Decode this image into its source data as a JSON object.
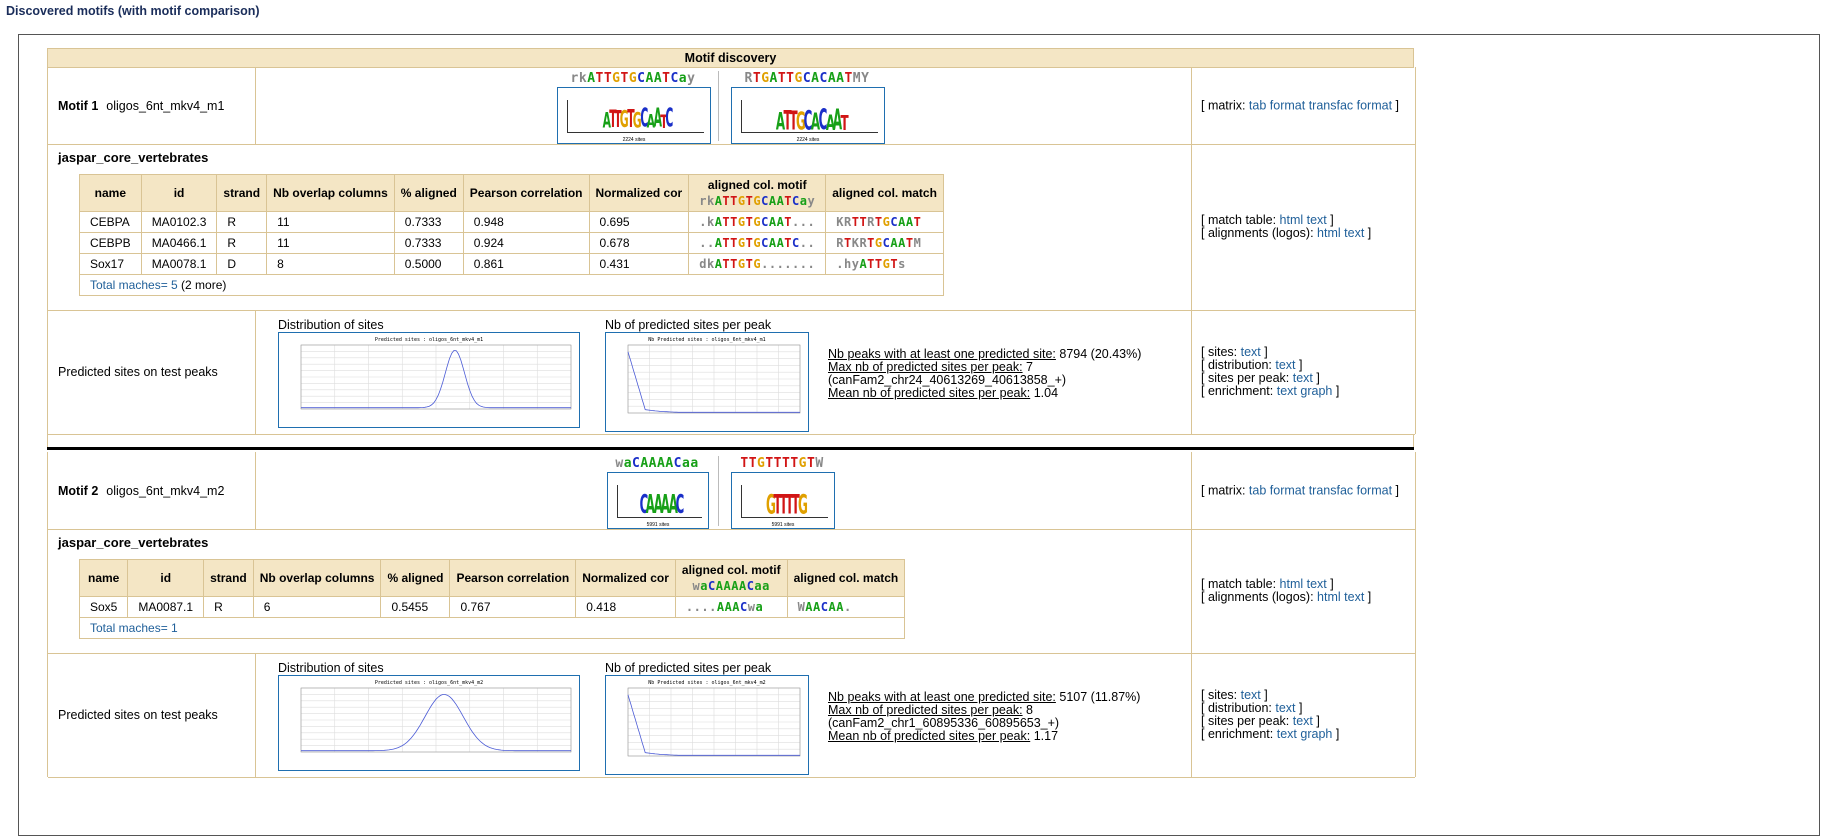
{
  "page_title": "Discovered motifs (with motif comparison)",
  "table_title": "Motif discovery",
  "motifs": [
    {
      "num": "Motif 1",
      "name": "oligos_6nt_mkv4_m1",
      "logo_fwd": {
        "consensus": "rkATTGTGCAATCay",
        "letters": "ATTGTGCAATC",
        "sites": "2224 sites"
      },
      "logo_rc": {
        "consensus": "RTGATTGCACAATMY",
        "letters": "ATTGCACAAT",
        "sites": "2224 sites"
      },
      "matrix_links": {
        "prefix": "[ matrix:",
        "tab": "tab format",
        "transfac": "transfac format",
        "suffix": "]"
      },
      "db": "jaspar_core_vertebrates",
      "motif_consensus": "rkATTGTGCAATCay",
      "matches": [
        {
          "name": "CEBPA",
          "id": "MA0102.3",
          "strand": "R",
          "overlap": "11",
          "aligned": "0.7333",
          "pearson": "0.948",
          "ncor": "0.695",
          "amotif": ".kATTGTGCAAT...",
          "amatch": "KRTTRTGCAAT"
        },
        {
          "name": "CEBPB",
          "id": "MA0466.1",
          "strand": "R",
          "overlap": "11",
          "aligned": "0.7333",
          "pearson": "0.924",
          "ncor": "0.678",
          "amotif": "..ATTGTGCAATC..",
          "amatch": "RTKRTGCAATM"
        },
        {
          "name": "Sox17",
          "id": "MA0078.1",
          "strand": "D",
          "overlap": "8",
          "aligned": "0.5000",
          "pearson": "0.861",
          "ncor": "0.431",
          "amotif": "dkATTGTG.......",
          "amatch": ".hyATTGTs"
        }
      ],
      "total_label": "Total maches= 5",
      "total_extra": " (2 more)",
      "match_links": {
        "table_prefix": "[ match table:",
        "html": "html",
        "text": "text",
        "align_prefix": "[ alignments (logos):",
        "html2": "html",
        "text2": "text",
        "suffix": "]"
      },
      "sites_label": "Predicted sites on test peaks",
      "dist_title": "Distribution of sites",
      "dist_plot_title": "Predicted sites : oligos_6nt_mkv4_m1",
      "peak_title": "Nb of predicted sites per peak",
      "peak_plot_title": "Nb Predicted sites : oligos_6nt_mkv4_m1",
      "stats": {
        "peaks_key": "Nb peaks with at least one predicted site:",
        "peaks_val": " 8794 (20.43%)",
        "max_key": "Max nb of predicted sites per peak:",
        "max_val": " 7",
        "max_loc": " (canFam2_chr24_40613269_40613858_+)",
        "mean_key": "Mean nb of predicted sites per peak:",
        "mean_val": " 1.04"
      },
      "sites_links": {
        "sites": "[ sites:",
        "sites_t": "text",
        "dist": "[ distribution:",
        "dist_t": "text",
        "spp": "[ sites per peak:",
        "spp_t": "text",
        "enr": "[ enrichment:",
        "enr_t": "text",
        "enr_g": "graph",
        "close": "]"
      }
    },
    {
      "num": "Motif 2",
      "name": "oligos_6nt_mkv4_m2",
      "logo_fwd": {
        "consensus": "waCAAAACaa",
        "letters": "CAAAAC",
        "sites": "5991 sites"
      },
      "logo_rc": {
        "consensus": "TTGTTTTGTW",
        "letters": "GTTTTG",
        "sites": "5991 sites"
      },
      "matrix_links": {
        "prefix": "[ matrix:",
        "tab": "tab format",
        "transfac": "transfac format",
        "suffix": "]"
      },
      "db": "jaspar_core_vertebrates",
      "motif_consensus": "waCAAAACaa",
      "matches": [
        {
          "name": "Sox5",
          "id": "MA0087.1",
          "strand": "R",
          "overlap": "6",
          "aligned": "0.5455",
          "pearson": "0.767",
          "ncor": "0.418",
          "amotif": "....AAACwa",
          "amatch": "WAACAA."
        }
      ],
      "total_label": "Total maches= 1",
      "total_extra": "",
      "match_links": {
        "table_prefix": "[ match table:",
        "html": "html",
        "text": "text",
        "align_prefix": "[ alignments (logos):",
        "html2": "html",
        "text2": "text",
        "suffix": "]"
      },
      "sites_label": "Predicted sites on test peaks",
      "dist_title": "Distribution of sites",
      "dist_plot_title": "Predicted sites : oligos_6nt_mkv4_m2",
      "peak_title": "Nb of predicted sites per peak",
      "peak_plot_title": "Nb Predicted sites : oligos_6nt_mkv4_m2",
      "stats": {
        "peaks_key": "Nb peaks with at least one predicted site:",
        "peaks_val": " 5107 (11.87%)",
        "max_key": "Max nb of predicted sites per peak:",
        "max_val": " 8",
        "max_loc": " (canFam2_chr1_60895336_60895653_+)",
        "mean_key": "Mean nb of predicted sites per peak:",
        "mean_val": " 1.17"
      },
      "sites_links": {
        "sites": "[ sites:",
        "sites_t": "text",
        "dist": "[ distribution:",
        "dist_t": "text",
        "spp": "[ sites per peak:",
        "spp_t": "text",
        "enr": "[ enrichment:",
        "enr_t": "text",
        "enr_g": "graph",
        "close": "]"
      }
    }
  ],
  "table_headers": {
    "name": "name",
    "id": "id",
    "strand": "strand",
    "overlap": "Nb overlap columns",
    "aligned": "% aligned",
    "pearson": "Pearson correlation",
    "ncor": "Normalized cor",
    "amotif": "aligned col. motif",
    "amatch": "aligned col. match"
  },
  "colors": {
    "A": "#17a017",
    "C": "#1a2fc8",
    "G": "#e0a000",
    "T": "#d11515",
    "header_bg": "#f4e6c5",
    "border": "#d9c495",
    "link": "#1f5f99"
  }
}
